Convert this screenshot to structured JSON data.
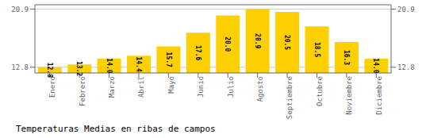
{
  "chart_data": {
    "type": "bar",
    "title": "Temperaturas Medias en ribas de campos",
    "categories": [
      "Enero",
      "Febrero",
      "Marzo",
      "Abril",
      "Mayo",
      "Junio",
      "Julio",
      "Agosto",
      "Septiembre",
      "Octubre",
      "Noviembre",
      "Diciembre"
    ],
    "values": [
      12.8,
      13.2,
      14.0,
      14.4,
      15.7,
      17.6,
      20.0,
      20.9,
      20.5,
      18.5,
      16.3,
      14.0
    ],
    "value_labels": [
      "12.8",
      "13.2",
      "14.0",
      "14.4",
      "15.7",
      "17.6",
      "20.0",
      "20.9",
      "20.5",
      "18.5",
      "16.3",
      "14.0"
    ],
    "color": "#FFD000",
    "ylim": [
      12.0,
      21.5
    ],
    "yticks": [
      12.8,
      20.9
    ],
    "y2lim": [
      12.0,
      21.5
    ],
    "y2ticks": [
      12.8,
      20.9
    ],
    "grid": true,
    "data_labels": true
  }
}
